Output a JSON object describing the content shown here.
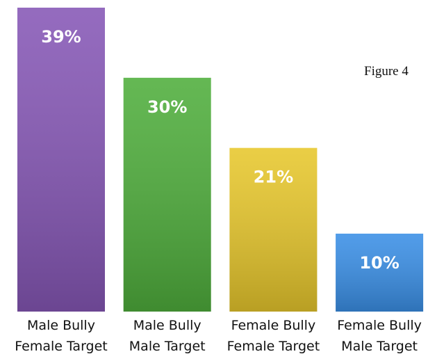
{
  "chart_data": {
    "type": "bar",
    "annotation": "Figure 4",
    "categories": [
      [
        "Male Bully",
        "Female Target"
      ],
      [
        "Male Bully",
        "Male Target"
      ],
      [
        "Female Bully",
        "Female Target"
      ],
      [
        "Female Bully",
        "Male Target"
      ]
    ],
    "values": [
      39,
      30,
      21,
      10
    ],
    "value_labels": [
      "39%",
      "30%",
      "21%",
      "10%"
    ],
    "colors": [
      "#8657b6",
      "#4fae3c",
      "#e7c72c",
      "#3a8fe6"
    ]
  }
}
